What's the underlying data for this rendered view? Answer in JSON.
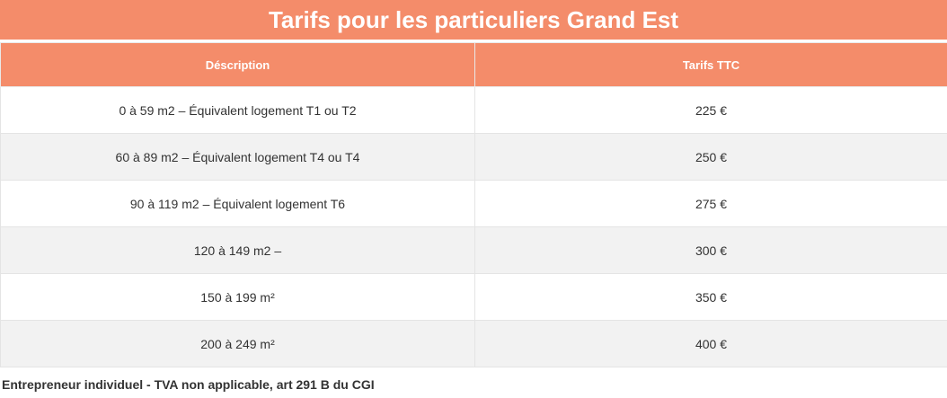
{
  "title": "Tarifs pour les particuliers Grand Est",
  "table": {
    "headers": [
      "Déscription",
      "Tarifs TTC"
    ],
    "rows": [
      {
        "description": "0 à 59 m2 – Équivalent logement T1 ou T2",
        "price": "225 €"
      },
      {
        "description": "60 à 89 m2 – Équivalent logement T4 ou T4",
        "price": "250 €"
      },
      {
        "description": "90 à 119 m2 – Équivalent logement T6",
        "price": "275 €"
      },
      {
        "description": "120 à 149 m2 –",
        "price": "300 €"
      },
      {
        "description": "150 à 199 m²",
        "price": "350 €"
      },
      {
        "description": "200 à 249 m²",
        "price": "400 €"
      }
    ]
  },
  "footnote": "Entrepreneur individuel - TVA non applicable, art 291 B du CGI",
  "colors": {
    "header_bg": "#f48c6a",
    "header_text": "#ffffff",
    "row_alt_bg": "#f2f2f2",
    "row_bg": "#ffffff"
  }
}
